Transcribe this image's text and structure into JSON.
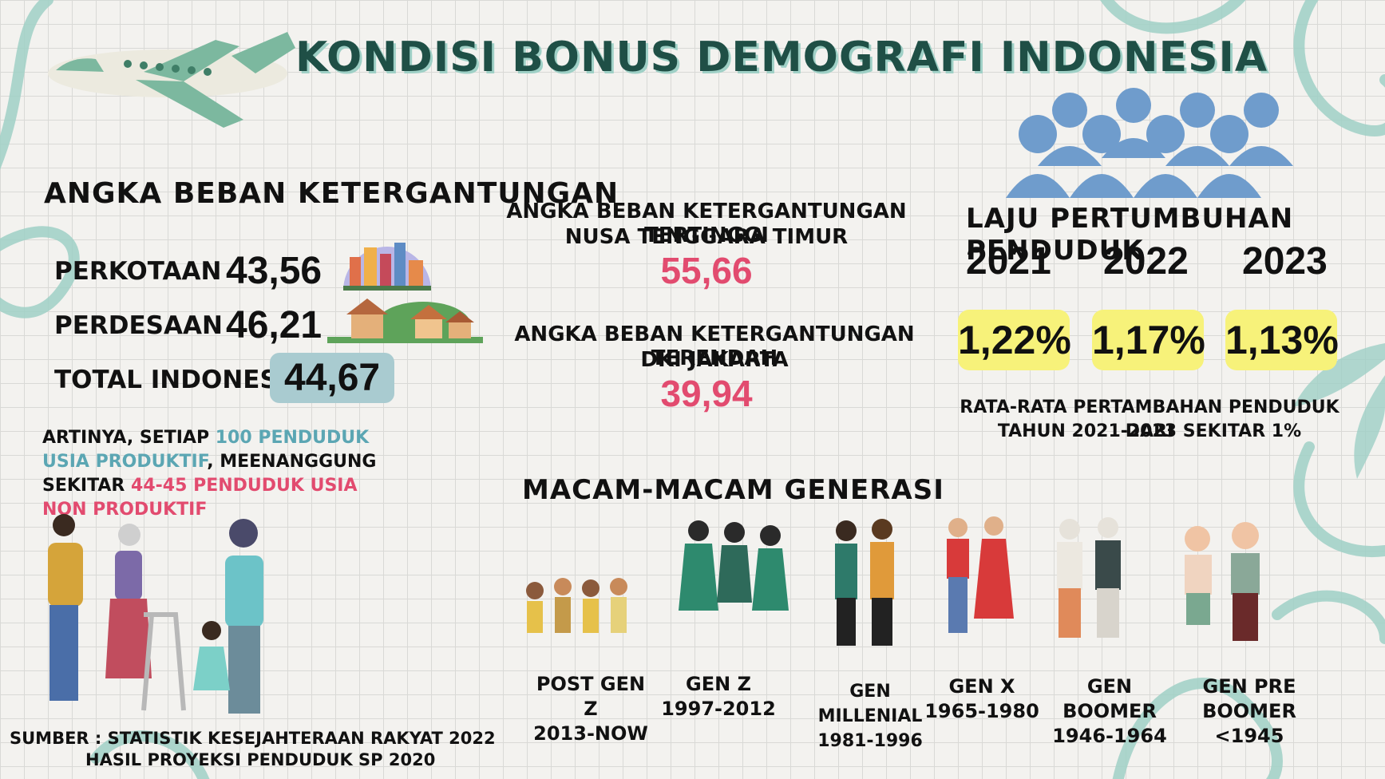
{
  "title": "KONDISI  BONUS DEMOGRAFI INDONESIA",
  "dependency": {
    "heading": "ANGKA BEBAN KETERGANTUNGAN",
    "rows": [
      {
        "label": "PERKOTAAN",
        "value": "43,56"
      },
      {
        "label": "PERDESAAN",
        "value": "46,21"
      },
      {
        "label": "TOTAL INDONESIA",
        "value": "44,67"
      }
    ],
    "meaning": {
      "p1": "ARTINYA, SETIAP ",
      "p2": "100 PENDUDUK USIA PRODUKTIF",
      "p3": ", MEENANGGUNG SEKITAR ",
      "p4": "44-45",
      "p5": " PENDUDUK USIA NON PRODUKTIF"
    }
  },
  "highest": {
    "label": "ANGKA BEBAN KETERGANTUNGAN TERTINGGI",
    "region": "NUSA TENGGARA TIMUR",
    "value": "55,66"
  },
  "lowest": {
    "label": "ANGKA  BEBAN KETERGANTUNGAN TERENDAH",
    "region": "DKI JAKARTA",
    "value": "39,94"
  },
  "growth": {
    "heading": "LAJU PERTUMBUHAN PENDUDUK",
    "years": [
      "2021",
      "2022",
      "2023"
    ],
    "rates": [
      "1,22%",
      "1,17%",
      "1,13%"
    ],
    "note1": "RATA-RATA PERTAMBAHAN PENDUDUK DARI",
    "note2": "TAHUN 2021-2023 SEKITAR 1%"
  },
  "generations": {
    "heading": "MACAM-MACAM GENERASI",
    "items": [
      {
        "name": "POST GEN Z",
        "years": "2013-NOW"
      },
      {
        "name": "GEN Z",
        "years": "1997-2012"
      },
      {
        "name": "GEN MILLENIAL",
        "years": "1981-1996"
      },
      {
        "name": "GEN  X",
        "years": "1965-1980"
      },
      {
        "name": "GEN BOOMER",
        "years": "1946-1964"
      },
      {
        "name": "GEN PRE BOOMER",
        "years": "<1945"
      }
    ]
  },
  "source": {
    "line1": "SUMBER : STATISTIK KESEJAHTERAAN RAKYAT  2022",
    "line2": "HASIL PROYEKSI PENDUDUK SP 2020"
  },
  "colors": {
    "title": "#1f4f46",
    "accent_pink": "#e24b6f",
    "accent_teal": "#5ba6b3",
    "highlight": "#f7f27a",
    "people_icon": "#6f9ccc",
    "decor": "#9fd0c6"
  }
}
